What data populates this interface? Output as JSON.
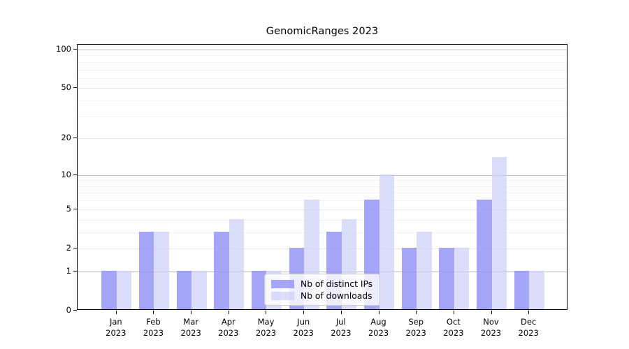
{
  "chart_data": {
    "type": "bar",
    "title": "GenomicRanges 2023",
    "months": [
      "Jan",
      "Feb",
      "Mar",
      "Apr",
      "May",
      "Jun",
      "Jul",
      "Aug",
      "Sep",
      "Oct",
      "Nov",
      "Dec"
    ],
    "year": "2023",
    "categories": [
      "Jan 2023",
      "Feb 2023",
      "Mar 2023",
      "Apr 2023",
      "May 2023",
      "Jun 2023",
      "Jul 2023",
      "Aug 2023",
      "Sep 2023",
      "Oct 2023",
      "Nov 2023",
      "Dec 2023"
    ],
    "series": [
      {
        "name": "Nb of distinct IPs",
        "color": "rgba(147,147,248,0.82)",
        "values": [
          1,
          3,
          1,
          3,
          1,
          2,
          3,
          6,
          2,
          2,
          6,
          1
        ]
      },
      {
        "name": "Nb of downloads",
        "color": "rgba(203,203,249,0.68)",
        "values": [
          1,
          3,
          1,
          4,
          1,
          6,
          4,
          10,
          3,
          2,
          14,
          1
        ]
      }
    ],
    "yticks": [
      0,
      1,
      2,
      5,
      10,
      20,
      50,
      100
    ],
    "ylim": [
      0,
      109
    ],
    "yscale": "log10(1+v)",
    "grid": true,
    "legend_position": "inside-bottom-center"
  },
  "colors": {
    "bar_distinct_ips": "rgba(147,147,248,0.82)",
    "bar_downloads": "rgba(203,203,249,0.68)",
    "grid_major": "#bdbdbd",
    "grid_mid": "#e8e8e8",
    "grid_minor": "#f3f3f3",
    "spine": "#000000",
    "legend_border": "#cccccc"
  }
}
